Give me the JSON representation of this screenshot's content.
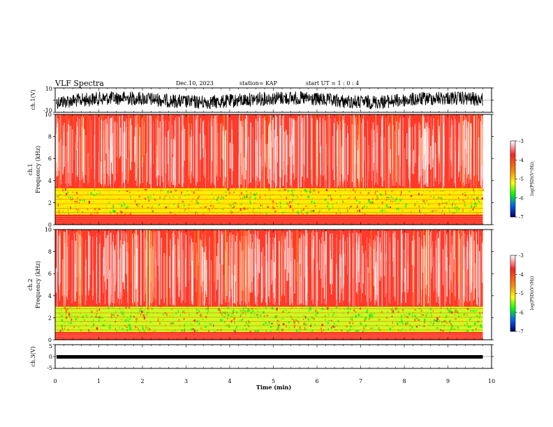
{
  "header": {
    "title": "VLF Spectra",
    "date": "Dec.10, 2023",
    "station": "station= KAP",
    "start_ut": "start  UT =   1 : 0  : 4"
  },
  "chart_data": [
    {
      "type": "line",
      "name": "ch1-waveform",
      "ylabel": "ch.1(V)",
      "yticks": [
        "10",
        "-10"
      ],
      "ylim": [
        -10,
        10
      ]
    },
    {
      "type": "heatmap",
      "name": "ch1-spectrogram",
      "ylabel_top": "ch.1",
      "ylabel": "Frequency (kHz)",
      "ylim": [
        0,
        10
      ],
      "yticks": [
        "0",
        "2",
        "4",
        "6",
        "8",
        "10"
      ],
      "colorbar": {
        "label": "log(PSD)(V²/Hz)",
        "ticks": [
          "-3",
          "-4",
          "-5",
          "-6",
          "-7"
        ],
        "range": [
          -7,
          -3
        ]
      },
      "bands": [
        {
          "from_khz": 3.3,
          "to_khz": 10.0,
          "level": "red-white speckle"
        },
        {
          "from_khz": 0.9,
          "to_khz": 3.3,
          "level": "yellow-green"
        },
        {
          "from_khz": 0.0,
          "to_khz": 0.9,
          "level": "red"
        }
      ]
    },
    {
      "type": "heatmap",
      "name": "ch2-spectrogram",
      "ylabel_top": "ch.2",
      "ylabel": "Frequency (kHz)",
      "ylim": [
        0,
        10
      ],
      "yticks": [
        "0",
        "2",
        "4",
        "6",
        "8",
        "10"
      ],
      "colorbar": {
        "label": "log(PSD)(V²/Hz)",
        "ticks": [
          "-3",
          "-4",
          "-5",
          "-6",
          "-7"
        ],
        "range": [
          -7,
          -3
        ]
      },
      "bands": [
        {
          "from_khz": 3.0,
          "to_khz": 10.0,
          "level": "red-white speckle"
        },
        {
          "from_khz": 0.7,
          "to_khz": 3.0,
          "level": "green-yellow"
        },
        {
          "from_khz": 0.0,
          "to_khz": 0.7,
          "level": "red"
        }
      ]
    },
    {
      "type": "line",
      "name": "ch3-waveform",
      "ylabel": "ch.3(V)",
      "yticks": [
        "5",
        "0",
        "-5"
      ],
      "ylim": [
        -5,
        5
      ]
    }
  ],
  "x_axis": {
    "label": "Time (min)",
    "ticks": [
      "0",
      "1",
      "2",
      "3",
      "4",
      "5",
      "6",
      "7",
      "8",
      "9",
      "10"
    ],
    "xlim": [
      0,
      10
    ],
    "data_end_min": 9.8
  }
}
